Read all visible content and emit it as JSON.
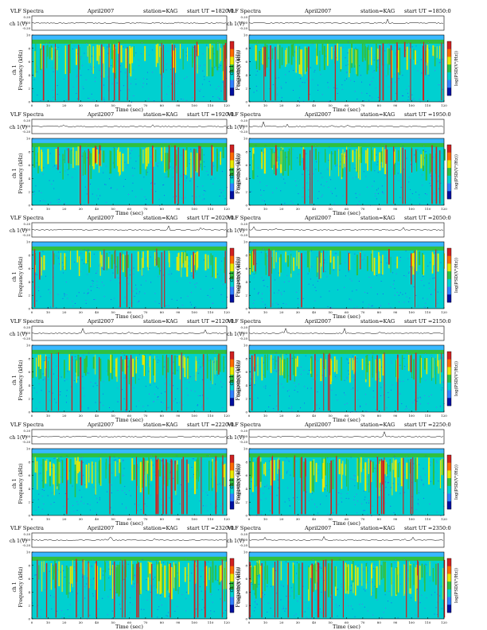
{
  "header": {
    "title": "VLF Spectra",
    "date": "April2007",
    "station": "station=KAG",
    "start_label": "start  UT"
  },
  "axes": {
    "top_ylabel": "ch 1(V)",
    "top_ticks": [
      "0.20",
      "0.00",
      "-0.20"
    ],
    "spec_ylabel_1": "ch 1",
    "spec_ylabel_2": "Frequency  (kHz)",
    "freq_ticks": [
      "0",
      "2",
      "4",
      "6",
      "8",
      "10"
    ],
    "time_ticks": [
      "0",
      "10",
      "20",
      "30",
      "40",
      "50",
      "60",
      "70",
      "80",
      "90",
      "100",
      "110",
      "120"
    ],
    "xlabel": "Time  (sec)",
    "colorbar_label": "log(PSD(V²/Hz))"
  },
  "colors": {
    "background": "#00d0d0",
    "low": "#1f50ff",
    "mid": "#30c040",
    "high": "#e8e800",
    "peak": "#d02020",
    "noise": "#6060ff"
  },
  "chart_data": [
    {
      "type": "heatmap",
      "start_ut": "=1820:0",
      "xlim": [
        0,
        120
      ],
      "ylim_khz": [
        0,
        10
      ],
      "activity": 0.75,
      "seed": 11
    },
    {
      "type": "heatmap",
      "start_ut": "=1850:0",
      "xlim": [
        0,
        120
      ],
      "ylim_khz": [
        0,
        10
      ],
      "activity": 0.7,
      "seed": 23
    },
    {
      "type": "heatmap",
      "start_ut": "=1920:0",
      "xlim": [
        0,
        120
      ],
      "ylim_khz": [
        0,
        10
      ],
      "activity": 0.6,
      "seed": 37
    },
    {
      "type": "heatmap",
      "start_ut": "=1950:0",
      "xlim": [
        0,
        120
      ],
      "ylim_khz": [
        0,
        10
      ],
      "activity": 0.65,
      "seed": 41
    },
    {
      "type": "heatmap",
      "start_ut": "=2020:0",
      "xlim": [
        0,
        120
      ],
      "ylim_khz": [
        0,
        10
      ],
      "activity": 0.45,
      "seed": 53
    },
    {
      "type": "heatmap",
      "start_ut": "=2050:0",
      "xlim": [
        0,
        120
      ],
      "ylim_khz": [
        0,
        10
      ],
      "activity": 0.45,
      "seed": 67
    },
    {
      "type": "heatmap",
      "start_ut": "=2120:0",
      "xlim": [
        0,
        120
      ],
      "ylim_khz": [
        0,
        10
      ],
      "activity": 0.55,
      "seed": 71
    },
    {
      "type": "heatmap",
      "start_ut": "=2150:0",
      "xlim": [
        0,
        120
      ],
      "ylim_khz": [
        0,
        10
      ],
      "activity": 0.6,
      "seed": 83
    },
    {
      "type": "heatmap",
      "start_ut": "=2220:0",
      "xlim": [
        0,
        120
      ],
      "ylim_khz": [
        0,
        10
      ],
      "activity": 0.85,
      "seed": 97
    },
    {
      "type": "heatmap",
      "start_ut": "=2250:0",
      "xlim": [
        0,
        120
      ],
      "ylim_khz": [
        0,
        10
      ],
      "activity": 0.85,
      "seed": 101
    },
    {
      "type": "heatmap",
      "start_ut": "=2320:0",
      "xlim": [
        0,
        120
      ],
      "ylim_khz": [
        0,
        10
      ],
      "activity": 0.9,
      "seed": 113
    },
    {
      "type": "heatmap",
      "start_ut": "=2350:0",
      "xlim": [
        0,
        120
      ],
      "ylim_khz": [
        0,
        10
      ],
      "activity": 0.9,
      "seed": 127
    }
  ]
}
